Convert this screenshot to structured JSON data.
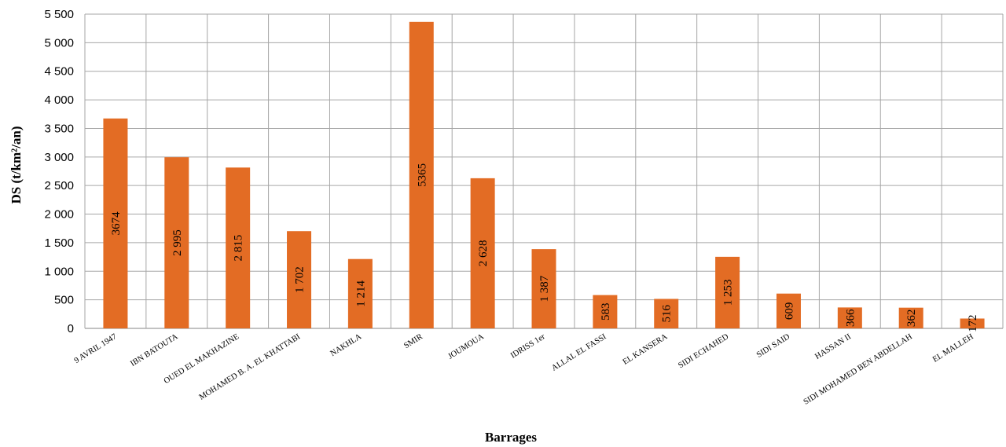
{
  "chart_data": {
    "type": "bar",
    "xlabel": "Barrages",
    "ylabel": "DS (t/km²/an)",
    "ylim": [
      0,
      5500
    ],
    "ytick_step": 500,
    "ytick_labels": [
      "0",
      "500",
      "1 000",
      "1 500",
      "2 000",
      "2 500",
      "3 000",
      "3 500",
      "4 000",
      "4 500",
      "5 000",
      "5 500"
    ],
    "grid": true,
    "legend": "none",
    "categories": [
      "9 AVRIL 1947",
      "IBN BATOUTA",
      "OUED EL MAKHAZINE",
      "MOHAMED B. A. EL KHATTABI",
      "NAKHLA",
      "SMIR",
      "JOUMOUA",
      "IDRISS 1er",
      "ALLAL EL FASSI",
      "EL KANSERA",
      "SIDI ECHAHED",
      "SIDI SAID",
      "HASSAN II",
      "SIDI MOHAMED BEN ABDELLAH",
      "EL MALLEH"
    ],
    "values": [
      3674,
      2995,
      2815,
      1702,
      1214,
      5365,
      2628,
      1387,
      583,
      516,
      1253,
      609,
      366,
      362,
      172
    ],
    "data_labels": [
      "3674",
      "2 995",
      "2 815",
      "1 702",
      "1 214",
      "5365",
      "2 628",
      "1 387",
      "583",
      "516",
      "1 253",
      "609",
      "366",
      "362",
      "172"
    ],
    "bar_color": "#e36c24",
    "grid_color": "#a6a6a6"
  }
}
